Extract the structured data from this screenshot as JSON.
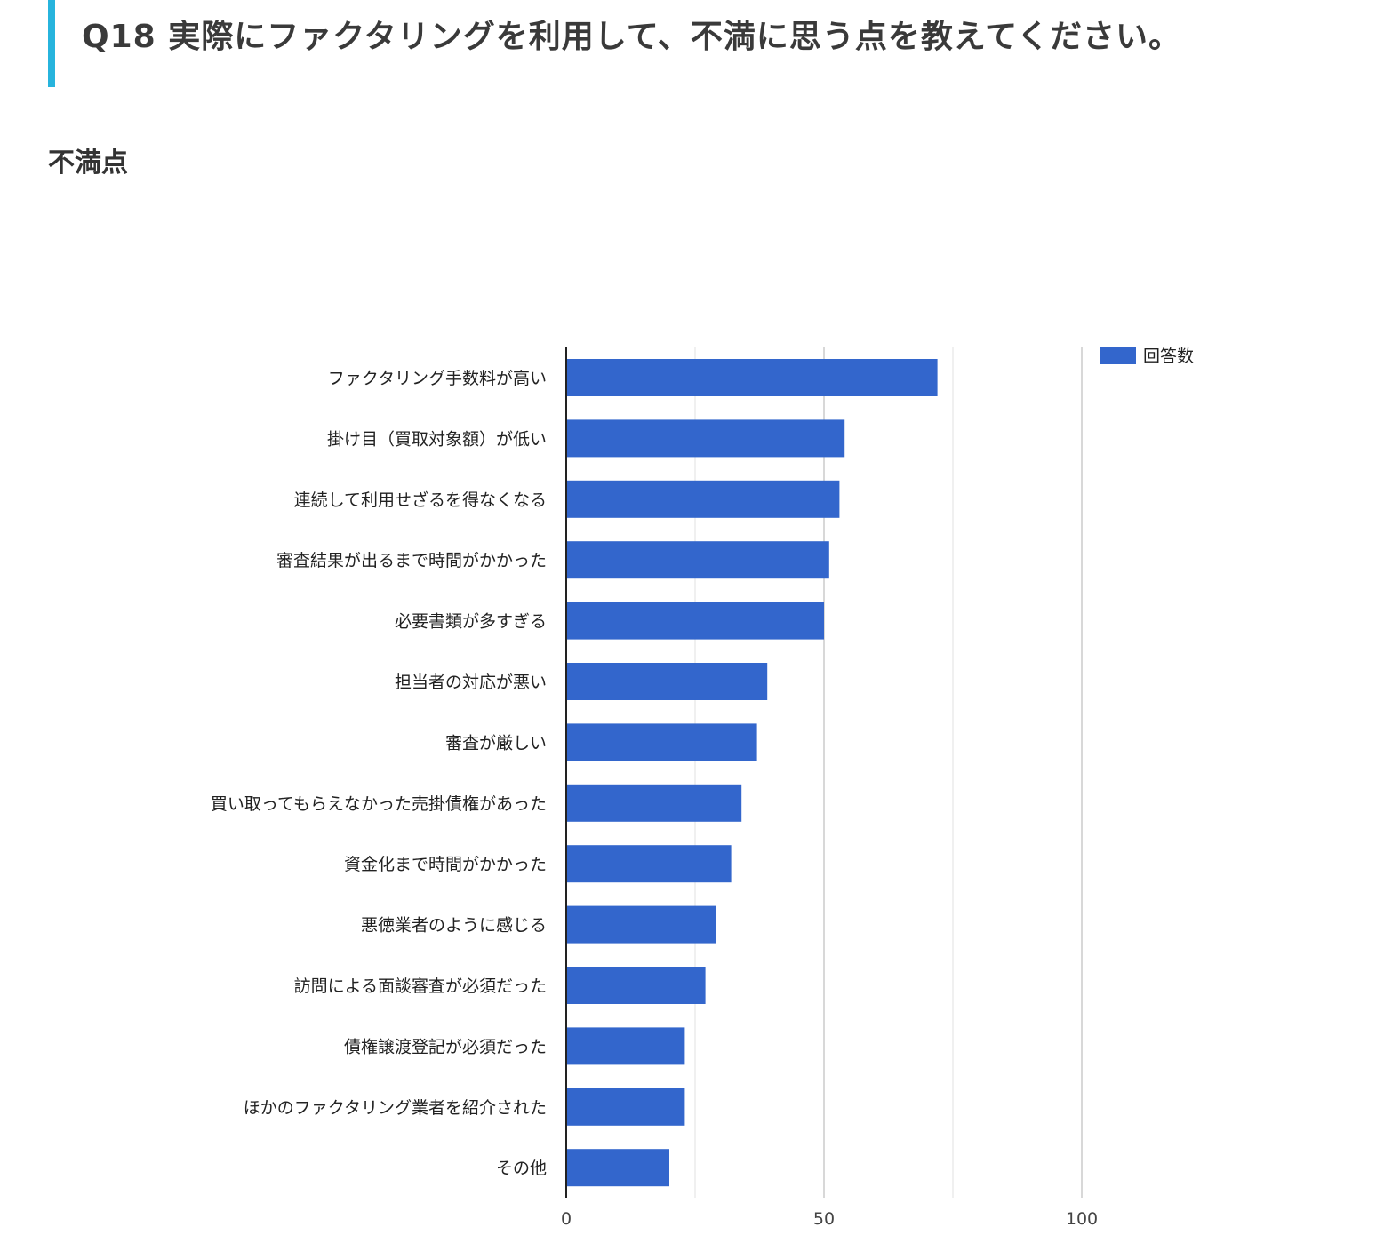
{
  "header": {
    "accent_color": "#27b4dd",
    "title": "Q18 実際にファクタリングを利用して、不満に思う点を教えてください。"
  },
  "section": {
    "title": "不満点"
  },
  "chart_data": {
    "type": "bar",
    "orientation": "horizontal",
    "categories": [
      "ファクタリング手数料が高い",
      "掛け目（買取対象額）が低い",
      "連続して利用せざるを得なくなる",
      "審査結果が出るまで時間がかかった",
      "必要書類が多すぎる",
      "担当者の対応が悪い",
      "審査が厳しい",
      "買い取ってもらえなかった売掛債権があった",
      "資金化まで時間がかかった",
      "悪徳業者のように感じる",
      "訪問による面談審査が必須だった",
      "債権譲渡登記が必須だった",
      "ほかのファクタリング業者を紹介された",
      "その他"
    ],
    "series": [
      {
        "name": "回答数",
        "color": "#3366cc",
        "values": [
          72,
          54,
          53,
          51,
          50,
          39,
          37,
          34,
          32,
          29,
          27,
          23,
          23,
          20
        ]
      }
    ],
    "xlim": [
      0,
      125
    ],
    "xticks": [
      0,
      50,
      100
    ],
    "minor_gridlines": [
      25,
      75
    ],
    "grid": true,
    "legend_position": "top-right"
  }
}
